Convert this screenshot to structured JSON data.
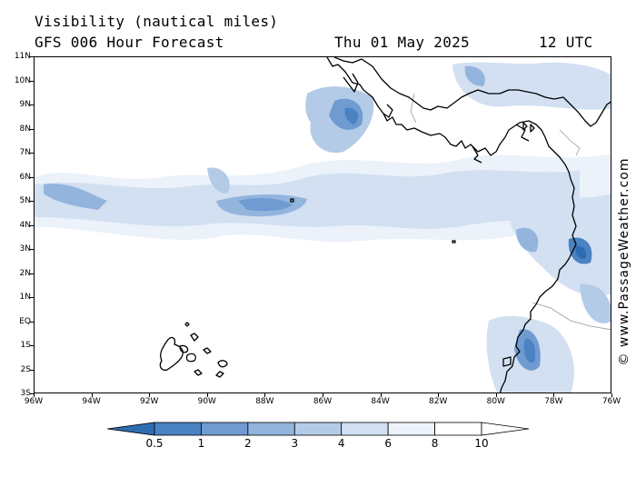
{
  "header": {
    "title": "Visibility (nautical miles)",
    "model": "GFS 006 Hour Forecast",
    "date": "Thu 01 May 2025",
    "utc": "12 UTC"
  },
  "watermark": "© www.PassageWeather.com",
  "map": {
    "lat_labels": [
      "11N",
      "10N",
      "9N",
      "8N",
      "7N",
      "6N",
      "5N",
      "4N",
      "3N",
      "2N",
      "1N",
      "EQ",
      "1S",
      "2S",
      "3S"
    ],
    "lon_labels": [
      "96W",
      "94W",
      "92W",
      "90W",
      "88W",
      "86W",
      "84W",
      "82W",
      "80W",
      "78W",
      "76W"
    ],
    "lat_range": [
      -3,
      11
    ],
    "lon_range": [
      -96,
      -76
    ],
    "ocean_color": "#ffffff",
    "land_color": "#ffffff",
    "coastline_color": "#000000",
    "border_color": "#999999"
  },
  "colorbar": {
    "labels": [
      "0.5",
      "1",
      "2",
      "3",
      "4",
      "6",
      "8",
      "10"
    ],
    "colors": [
      "#2f6db3",
      "#4a82c2",
      "#6f9bd1",
      "#93b4dd",
      "#b4cbe8",
      "#d2e0f2",
      "#ecf2fa",
      "#ffffff"
    ]
  }
}
